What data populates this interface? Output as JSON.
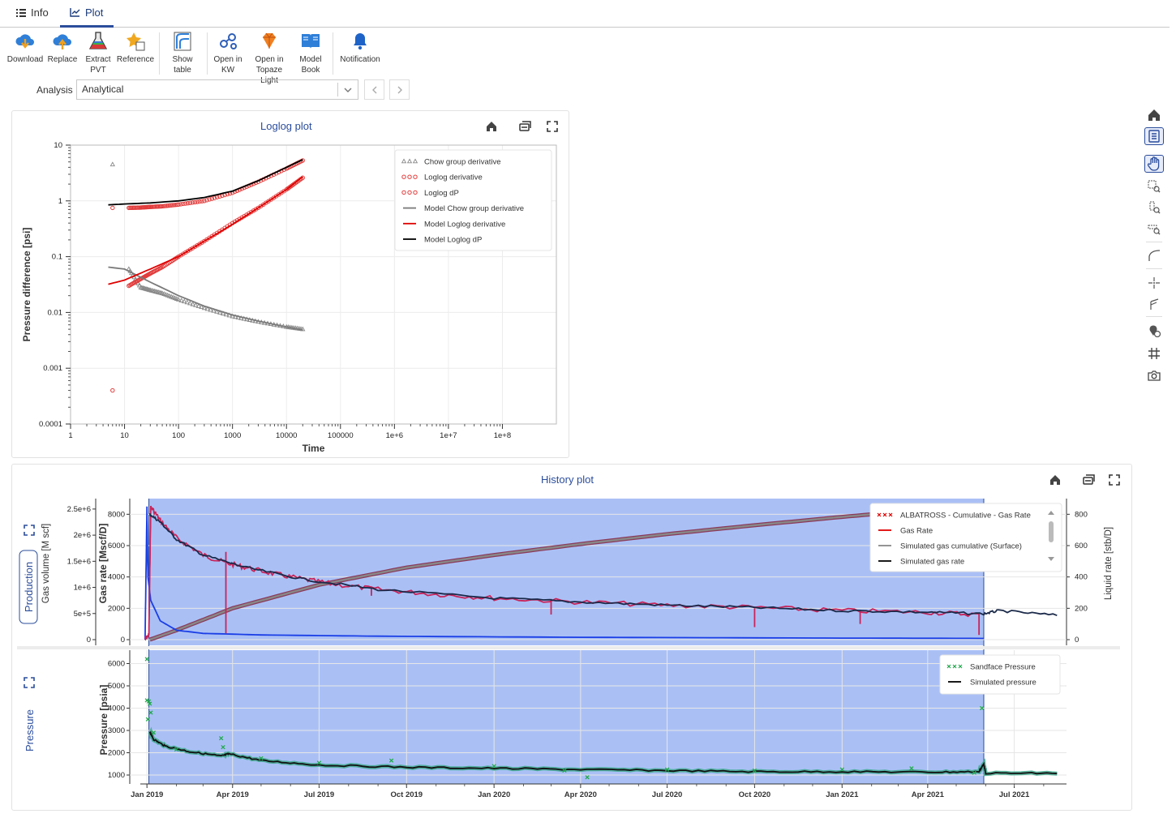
{
  "tabs": [
    {
      "label": "Info",
      "icon": "list-icon",
      "active": false
    },
    {
      "label": "Plot",
      "icon": "chart-line-icon",
      "active": true
    }
  ],
  "toolbar": {
    "download": "Download",
    "replace": "Replace",
    "extract_pvt_1": "Extract",
    "extract_pvt_2": "PVT",
    "reference": "Reference",
    "show_table_1": "Show",
    "show_table_2": "table",
    "open_kw_1": "Open in",
    "open_kw_2": "KW",
    "open_topaze_1": "Open in",
    "open_topaze_2": "Topaze Light",
    "model_book_1": "Model",
    "model_book_2": "Book",
    "notification": "Notification"
  },
  "analysis": {
    "label": "Analysis",
    "value": "Analytical"
  },
  "colors": {
    "accent": "#2b4d9b",
    "selection": "#aac0f5",
    "gas_rate": "#c8245a",
    "liquid_rate": "#1a3ee6",
    "sim_gas_rate": "#1b2a4a",
    "cumulative": "#888888",
    "pressure": "#1fa84a"
  },
  "loglog": {
    "title": "Loglog plot",
    "ylabel": "Pressure difference [psi]",
    "xlabel": "Time",
    "xticks": [
      "1",
      "10",
      "100",
      "1000",
      "10000",
      "100000",
      "1e+6",
      "1e+7",
      "1e+8"
    ],
    "yticks": [
      "10",
      "1",
      "0.1",
      "0.01",
      "0.001",
      "0.0001"
    ],
    "legend": [
      {
        "label": "Chow group derivative",
        "kind": "triangle",
        "color": "#888888"
      },
      {
        "label": "Loglog derivative",
        "kind": "circle",
        "color": "#e23b3b"
      },
      {
        "label": "Loglog dP",
        "kind": "circle",
        "color": "#e23b3b"
      },
      {
        "label": "Model Chow group derivative",
        "kind": "line",
        "color": "#7a7a7a"
      },
      {
        "label": "Model Loglog derivative",
        "kind": "line",
        "color": "#e00000"
      },
      {
        "label": "Model Loglog dP",
        "kind": "line",
        "color": "#000000"
      }
    ]
  },
  "history": {
    "title": "History plot",
    "production_label": "Production",
    "pressure_label": "Pressure",
    "gas_volume_label": "Gas volume [M scf]",
    "gas_rate_label": "Gas rate [Mscf/D]",
    "liquid_rate_label": "Liquid rate [stb/D]",
    "pressure_axis_label": "Pressure [psia]",
    "vol_ticks": [
      "2.5e+6",
      "2e+6",
      "1.5e+6",
      "1e+6",
      "5e+5",
      "0"
    ],
    "rate_ticks": [
      "8000",
      "6000",
      "4000",
      "2000",
      "0"
    ],
    "liquid_ticks": [
      "800",
      "600",
      "400",
      "200",
      "0"
    ],
    "pressure_ticks": [
      "6000",
      "5000",
      "4000",
      "3000",
      "2000",
      "1000"
    ],
    "date_ticks": [
      "Jan 2019",
      "Apr 2019",
      "Jul 2019",
      "Oct 2019",
      "Jan 2020",
      "Apr 2020",
      "Jul 2020",
      "Oct 2020",
      "Jan 2021",
      "Apr 2021",
      "Jul 2021"
    ],
    "legend_top": [
      {
        "label": "ALBATROSS - Cumulative - Gas Rate",
        "kind": "cross",
        "color": "#e00000"
      },
      {
        "label": "Gas Rate",
        "kind": "line",
        "color": "#e00000"
      },
      {
        "label": "Simulated gas cumulative (Surface)",
        "kind": "line",
        "color": "#888888"
      },
      {
        "label": "Simulated gas rate",
        "kind": "line",
        "color": "#000000"
      }
    ],
    "legend_bottom": [
      {
        "label": "Sandface Pressure",
        "kind": "cross",
        "color": "#1fa84a"
      },
      {
        "label": "Simulated pressure",
        "kind": "line",
        "color": "#000000"
      }
    ]
  },
  "chart_data": [
    {
      "type": "scatter",
      "title": "Loglog plot",
      "xlabel": "Time",
      "ylabel": "Pressure difference [psi]",
      "x_scale": "log",
      "y_scale": "log",
      "xlim": [
        1,
        1000000000
      ],
      "ylim": [
        0.0001,
        10
      ],
      "series": [
        {
          "name": "Loglog dP",
          "x": [
            6,
            12,
            20,
            30,
            50,
            100,
            300,
            1000,
            3000,
            10000,
            20000
          ],
          "y": [
            0.75,
            0.75,
            0.76,
            0.78,
            0.8,
            0.86,
            1.0,
            1.4,
            2.2,
            3.8,
            5.3
          ]
        },
        {
          "name": "Loglog derivative",
          "x": [
            6,
            12,
            20,
            30,
            50,
            100,
            300,
            1000,
            3000,
            10000,
            20000
          ],
          "y": [
            0.0004,
            0.03,
            0.04,
            0.05,
            0.065,
            0.1,
            0.19,
            0.4,
            0.75,
            1.6,
            2.6
          ]
        },
        {
          "name": "Chow group derivative",
          "x": [
            6,
            12,
            20,
            30,
            50,
            100,
            300,
            1000,
            3000,
            10000,
            20000
          ],
          "y": [
            4.5,
            0.06,
            0.028,
            0.025,
            0.022,
            0.017,
            0.012,
            0.0085,
            0.0068,
            0.0055,
            0.005
          ]
        },
        {
          "name": "Model Loglog dP",
          "x": [
            5,
            10,
            30,
            100,
            300,
            1000,
            3000,
            10000,
            20000
          ],
          "y": [
            0.85,
            0.88,
            0.92,
            1.0,
            1.15,
            1.5,
            2.3,
            4.0,
            5.5
          ]
        },
        {
          "name": "Model Loglog derivative",
          "x": [
            5,
            10,
            30,
            100,
            300,
            1000,
            3000,
            10000,
            20000
          ],
          "y": [
            0.032,
            0.038,
            0.06,
            0.1,
            0.19,
            0.38,
            0.75,
            1.6,
            2.7
          ]
        },
        {
          "name": "Model Chow group derivative",
          "x": [
            5,
            10,
            30,
            100,
            300,
            1000,
            3000,
            10000,
            20000
          ],
          "y": [
            0.065,
            0.06,
            0.035,
            0.02,
            0.013,
            0.009,
            0.007,
            0.0055,
            0.0049
          ]
        }
      ]
    },
    {
      "type": "line",
      "title": "History plot",
      "x_unit": "date",
      "xlim": [
        "2018-12-25",
        "2021-08-25"
      ],
      "selection": [
        "2019-01-03",
        "2021-05-30"
      ],
      "top_panel": {
        "ylabel_left_outer": "Gas volume [M scf]",
        "ylabel_left": "Gas rate [Mscf/D]",
        "ylabel_right": "Liquid rate [stb/D]",
        "ylim_rate": [
          0,
          9000
        ],
        "ylim_volume": [
          0,
          2700000
        ],
        "ylim_liquid": [
          0,
          900
        ],
        "series": [
          {
            "name": "Gas Rate",
            "axis": "rate",
            "x": [
              "2018-12-30",
              "2019-01-03",
              "2019-01-05",
              "2019-01-15",
              "2019-02-01",
              "2019-03-01",
              "2019-03-25",
              "2019-04-15",
              "2019-05-15",
              "2019-06-15",
              "2019-07-15",
              "2019-09-01",
              "2019-11-01",
              "2020-01-01",
              "2020-04-01",
              "2020-07-01",
              "2020-10-01",
              "2021-01-01",
              "2021-04-01",
              "2021-05-25"
            ],
            "y": [
              0,
              300,
              8500,
              7600,
              6500,
              5400,
              4900,
              4600,
              4200,
              3850,
              3550,
              3200,
              2900,
              2650,
              2400,
              2200,
              2050,
              1850,
              1750,
              1600
            ]
          },
          {
            "name": "Simulated gas rate",
            "axis": "rate",
            "x": [
              "2019-01-04",
              "2019-01-15",
              "2019-02-01",
              "2019-03-01",
              "2019-04-15",
              "2019-06-15",
              "2019-09-01",
              "2020-01-01",
              "2020-04-01",
              "2020-07-01",
              "2020-10-01",
              "2021-01-01",
              "2021-04-01",
              "2021-05-30",
              "2021-06-15",
              "2021-08-15"
            ],
            "y": [
              8000,
              7500,
              6400,
              5400,
              4600,
              3850,
              3200,
              2650,
              2400,
              2200,
              2050,
              1850,
              1750,
              1650,
              1850,
              1550
            ]
          },
          {
            "name": "Simulated gas cumulative (Surface)",
            "axis": "volume",
            "x": [
              "2019-01-04",
              "2019-02-01",
              "2019-04-01",
              "2019-07-01",
              "2019-10-01",
              "2020-01-01",
              "2020-04-01",
              "2020-07-01",
              "2020-10-01",
              "2021-01-01",
              "2021-04-01",
              "2021-05-30"
            ],
            "y": [
              0,
              180000,
              600000,
              1050000,
              1380000,
              1620000,
              1830000,
              2020000,
              2190000,
              2350000,
              2490000,
              2560000
            ]
          },
          {
            "name": "ALBATROSS - Cumulative - Gas Rate",
            "axis": "volume",
            "x": [
              "2019-01-04",
              "2019-02-01",
              "2019-04-01",
              "2019-07-01",
              "2019-10-01",
              "2020-01-01",
              "2020-04-01",
              "2020-07-01",
              "2020-10-01",
              "2021-01-01",
              "2021-04-01",
              "2021-05-30"
            ],
            "y": [
              0,
              180000,
              600000,
              1050000,
              1380000,
              1620000,
              1830000,
              2020000,
              2190000,
              2350000,
              2490000,
              2560000
            ]
          },
          {
            "name": "Liquid rate",
            "axis": "liquid",
            "x": [
              "2018-12-30",
              "2019-01-01",
              "2019-01-02",
              "2019-01-05",
              "2019-01-15",
              "2019-02-01",
              "2019-03-01",
              "2019-05-01",
              "2019-09-01",
              "2020-04-01",
              "2021-01-01",
              "2021-05-30"
            ],
            "y": [
              0,
              850,
              400,
              250,
              120,
              60,
              40,
              30,
              22,
              15,
              10,
              8
            ]
          }
        ]
      },
      "bottom_panel": {
        "ylabel": "Pressure [psia]",
        "ylim": [
          600,
          6600
        ],
        "series": [
          {
            "name": "Sandface Pressure",
            "x": [
              "2019-01-01",
              "2019-01-01",
              "2019-01-02",
              "2019-01-03",
              "2019-01-04",
              "2019-01-05",
              "2019-01-08",
              "2019-02-01",
              "2019-03-20",
              "2019-03-22",
              "2019-05-01",
              "2019-07-01",
              "2019-09-15",
              "2020-01-01",
              "2020-03-15",
              "2020-04-08",
              "2020-07-01",
              "2020-10-01",
              "2021-01-01",
              "2021-03-15",
              "2021-05-20",
              "2021-05-28"
            ],
            "y": [
              6200,
              4350,
              3500,
              4300,
              4200,
              3800,
              2900,
              2150,
              2650,
              2250,
              1750,
              1550,
              1650,
              1400,
              1200,
              900,
              1250,
              1200,
              1250,
              1300,
              1100,
              4000
            ]
          },
          {
            "name": "Simulated pressure",
            "x": [
              "2019-01-04",
              "2019-01-08",
              "2019-01-20",
              "2019-02-15",
              "2019-03-20",
              "2019-03-28",
              "2019-05-01",
              "2019-07-01",
              "2019-10-01",
              "2020-01-01",
              "2020-04-01",
              "2020-07-01",
              "2020-10-01",
              "2021-01-01",
              "2021-04-01",
              "2021-05-25",
              "2021-05-30",
              "2021-06-01",
              "2021-08-15"
            ],
            "y": [
              2950,
              2600,
              2300,
              2050,
              1850,
              1950,
              1650,
              1450,
              1350,
              1300,
              1250,
              1200,
              1150,
              1150,
              1130,
              1150,
              1500,
              1080,
              1080
            ]
          }
        ]
      }
    }
  ]
}
